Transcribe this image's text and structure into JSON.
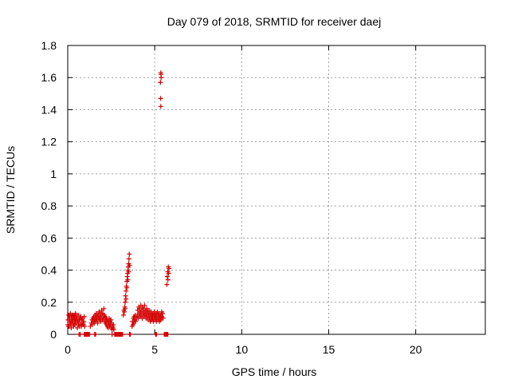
{
  "chart_data": {
    "type": "scatter",
    "title": "Day 079 of 2018, SRMTID for receiver daej",
    "xlabel": "GPS time / hours",
    "ylabel": "SRMTID / TECUs",
    "xlim": [
      0,
      24
    ],
    "ylim": [
      0,
      1.8
    ],
    "xticks": [
      0,
      5,
      10,
      15,
      20
    ],
    "xtick_labels": [
      "0",
      "5",
      "10",
      "15",
      "20"
    ],
    "yticks": [
      0,
      0.2,
      0.4,
      0.6,
      0.8,
      1.0,
      1.2,
      1.4,
      1.6,
      1.8
    ],
    "ytick_labels": [
      "0",
      "0.2",
      "0.4",
      "0.6",
      "0.8",
      "1",
      "1.2",
      "1.4",
      "1.6",
      "1.8"
    ],
    "grid": true,
    "marker": "+",
    "series": [
      {
        "name": "SRMTID",
        "color": "#d40000",
        "points": [
          [
            0.0,
            0.06
          ],
          [
            0.02,
            0.09
          ],
          [
            0.05,
            0.12
          ],
          [
            0.08,
            0.05
          ],
          [
            0.1,
            0.1
          ],
          [
            0.12,
            0.08
          ],
          [
            0.15,
            0.13
          ],
          [
            0.18,
            0.06
          ],
          [
            0.2,
            0.11
          ],
          [
            0.22,
            0.09
          ],
          [
            0.25,
            0.12
          ],
          [
            0.28,
            0.07
          ],
          [
            0.3,
            0.1
          ],
          [
            0.33,
            0.05
          ],
          [
            0.35,
            0.11
          ],
          [
            0.38,
            0.08
          ],
          [
            0.4,
            0.12
          ],
          [
            0.42,
            0.06
          ],
          [
            0.45,
            0.09
          ],
          [
            0.48,
            0.11
          ],
          [
            0.5,
            0.07
          ],
          [
            0.52,
            0.1
          ],
          [
            0.55,
            0.04
          ],
          [
            0.58,
            0.08
          ],
          [
            0.6,
            0.12
          ],
          [
            0.62,
            0.06
          ],
          [
            0.65,
            0.09
          ],
          [
            0.68,
            0.05
          ],
          [
            0.7,
            0.1
          ],
          [
            0.72,
            0.07
          ],
          [
            0.75,
            0.11
          ],
          [
            0.78,
            0.05
          ],
          [
            0.8,
            0.09
          ],
          [
            0.82,
            0.06
          ],
          [
            0.85,
            0.1
          ],
          [
            0.88,
            0.07
          ],
          [
            0.9,
            0.06
          ],
          [
            0.92,
            0.08
          ],
          [
            0.95,
            0.11
          ],
          [
            0.97,
            0.05
          ],
          [
            0.05,
            0.05
          ],
          [
            0.1,
            0.11
          ],
          [
            0.15,
            0.07
          ],
          [
            0.2,
            0.04
          ],
          [
            0.25,
            0.08
          ],
          [
            0.3,
            0.12
          ],
          [
            0.35,
            0.06
          ],
          [
            0.4,
            0.09
          ],
          [
            0.45,
            0.13
          ],
          [
            0.5,
            0.1
          ],
          [
            0.65,
            0.0
          ],
          [
            0.72,
            0.0
          ],
          [
            0.95,
            0.0
          ],
          [
            1.0,
            0.0
          ],
          [
            1.05,
            0.0
          ],
          [
            1.1,
            0.0
          ],
          [
            1.15,
            0.0
          ],
          [
            1.2,
            0.0
          ],
          [
            1.25,
            0.0
          ],
          [
            1.55,
            0.0
          ],
          [
            1.6,
            0.0
          ],
          [
            2.55,
            0.0
          ],
          [
            2.7,
            0.0
          ],
          [
            2.75,
            0.0
          ],
          [
            2.8,
            0.0
          ],
          [
            2.85,
            0.0
          ],
          [
            2.9,
            0.0
          ],
          [
            2.95,
            0.0
          ],
          [
            3.0,
            0.0
          ],
          [
            3.05,
            0.0
          ],
          [
            3.1,
            0.0
          ],
          [
            3.15,
            0.0
          ],
          [
            3.55,
            0.0
          ],
          [
            3.6,
            0.0
          ],
          [
            5.05,
            0.0
          ],
          [
            5.1,
            0.0
          ],
          [
            5.55,
            0.0
          ],
          [
            5.6,
            0.0
          ],
          [
            5.65,
            0.0
          ],
          [
            5.7,
            0.0
          ],
          [
            5.75,
            0.0
          ],
          [
            1.3,
            0.05
          ],
          [
            1.35,
            0.07
          ],
          [
            1.4,
            0.09
          ],
          [
            1.42,
            0.06
          ],
          [
            1.45,
            0.1
          ],
          [
            1.48,
            0.08
          ],
          [
            1.5,
            0.11
          ],
          [
            1.52,
            0.07
          ],
          [
            1.55,
            0.09
          ],
          [
            1.58,
            0.12
          ],
          [
            1.6,
            0.08
          ],
          [
            1.62,
            0.1
          ],
          [
            1.65,
            0.13
          ],
          [
            1.68,
            0.09
          ],
          [
            1.7,
            0.11
          ],
          [
            1.72,
            0.07
          ],
          [
            1.75,
            0.12
          ],
          [
            1.78,
            0.1
          ],
          [
            1.8,
            0.14
          ],
          [
            1.82,
            0.09
          ],
          [
            1.85,
            0.11
          ],
          [
            1.88,
            0.13
          ],
          [
            1.9,
            0.08
          ],
          [
            1.92,
            0.1
          ],
          [
            1.95,
            0.15
          ],
          [
            1.97,
            0.12
          ],
          [
            2.0,
            0.09
          ],
          [
            2.02,
            0.13
          ],
          [
            2.05,
            0.1
          ],
          [
            2.08,
            0.16
          ],
          [
            2.1,
            0.12
          ],
          [
            2.12,
            0.08
          ],
          [
            2.15,
            0.11
          ],
          [
            2.18,
            0.07
          ],
          [
            2.2,
            0.1
          ],
          [
            2.22,
            0.06
          ],
          [
            2.25,
            0.09
          ],
          [
            2.28,
            0.05
          ],
          [
            2.3,
            0.08
          ],
          [
            2.32,
            0.04
          ],
          [
            2.35,
            0.07
          ],
          [
            2.38,
            0.1
          ],
          [
            2.4,
            0.05
          ],
          [
            2.42,
            0.08
          ],
          [
            2.45,
            0.06
          ],
          [
            2.48,
            0.09
          ],
          [
            2.5,
            0.04
          ],
          [
            2.52,
            0.07
          ],
          [
            2.55,
            0.03
          ],
          [
            2.58,
            0.05
          ],
          [
            2.6,
            0.04
          ],
          [
            2.62,
            0.06
          ],
          [
            2.65,
            0.03
          ],
          [
            3.2,
            0.12
          ],
          [
            3.22,
            0.15
          ],
          [
            3.25,
            0.14
          ],
          [
            3.28,
            0.17
          ],
          [
            3.3,
            0.2
          ],
          [
            3.32,
            0.24
          ],
          [
            3.35,
            0.27
          ],
          [
            3.37,
            0.3
          ],
          [
            3.4,
            0.33
          ],
          [
            3.42,
            0.36
          ],
          [
            3.44,
            0.38
          ],
          [
            3.46,
            0.4
          ],
          [
            3.48,
            0.42
          ],
          [
            3.5,
            0.44
          ],
          [
            3.52,
            0.47
          ],
          [
            3.54,
            0.5
          ],
          [
            3.55,
            0.43
          ],
          [
            3.3,
            0.16
          ],
          [
            3.35,
            0.22
          ],
          [
            3.4,
            0.29
          ],
          [
            3.45,
            0.34
          ],
          [
            3.5,
            0.39
          ],
          [
            3.7,
            0.05
          ],
          [
            3.72,
            0.08
          ],
          [
            3.75,
            0.06
          ],
          [
            3.78,
            0.1
          ],
          [
            3.8,
            0.07
          ],
          [
            3.82,
            0.11
          ],
          [
            3.85,
            0.09
          ],
          [
            3.88,
            0.12
          ],
          [
            3.9,
            0.08
          ],
          [
            3.95,
            0.1
          ],
          [
            4.0,
            0.12
          ],
          [
            4.02,
            0.15
          ],
          [
            4.05,
            0.1
          ],
          [
            4.08,
            0.17
          ],
          [
            4.1,
            0.13
          ],
          [
            4.12,
            0.16
          ],
          [
            4.15,
            0.11
          ],
          [
            4.18,
            0.14
          ],
          [
            4.2,
            0.18
          ],
          [
            4.22,
            0.12
          ],
          [
            4.25,
            0.15
          ],
          [
            4.28,
            0.1
          ],
          [
            4.3,
            0.17
          ],
          [
            4.32,
            0.13
          ],
          [
            4.35,
            0.16
          ],
          [
            4.38,
            0.11
          ],
          [
            4.4,
            0.14
          ],
          [
            4.42,
            0.18
          ],
          [
            4.45,
            0.12
          ],
          [
            4.48,
            0.15
          ],
          [
            4.5,
            0.1
          ],
          [
            4.52,
            0.13
          ],
          [
            4.55,
            0.16
          ],
          [
            4.58,
            0.11
          ],
          [
            4.6,
            0.14
          ],
          [
            4.62,
            0.09
          ],
          [
            4.65,
            0.12
          ],
          [
            4.68,
            0.15
          ],
          [
            4.7,
            0.1
          ],
          [
            4.72,
            0.13
          ],
          [
            4.75,
            0.08
          ],
          [
            4.78,
            0.11
          ],
          [
            4.8,
            0.14
          ],
          [
            4.82,
            0.09
          ],
          [
            4.85,
            0.12
          ],
          [
            4.88,
            0.1
          ],
          [
            4.9,
            0.13
          ],
          [
            4.92,
            0.08
          ],
          [
            4.95,
            0.11
          ],
          [
            4.98,
            0.14
          ],
          [
            5.0,
            0.09
          ],
          [
            5.02,
            0.12
          ],
          [
            5.05,
            0.1
          ],
          [
            5.08,
            0.13
          ],
          [
            5.1,
            0.08
          ],
          [
            5.12,
            0.11
          ],
          [
            5.15,
            0.14
          ],
          [
            5.18,
            0.09
          ],
          [
            5.2,
            0.12
          ],
          [
            5.22,
            0.1
          ],
          [
            5.25,
            0.13
          ],
          [
            5.28,
            0.08
          ],
          [
            5.3,
            0.11
          ],
          [
            5.32,
            0.09
          ],
          [
            5.35,
            0.12
          ],
          [
            5.38,
            0.1
          ],
          [
            5.4,
            0.14
          ],
          [
            5.42,
            0.11
          ],
          [
            5.45,
            0.13
          ],
          [
            5.48,
            0.1
          ],
          [
            5.35,
            1.63
          ],
          [
            5.37,
            1.6
          ],
          [
            5.33,
            1.57
          ],
          [
            5.36,
            1.62
          ],
          [
            5.34,
            1.47
          ],
          [
            5.35,
            1.42
          ],
          [
            5.7,
            0.31
          ],
          [
            5.72,
            0.36
          ],
          [
            5.75,
            0.39
          ],
          [
            5.78,
            0.42
          ],
          [
            5.8,
            0.38
          ],
          [
            5.82,
            0.41
          ],
          [
            5.76,
            0.34
          ]
        ]
      }
    ]
  }
}
